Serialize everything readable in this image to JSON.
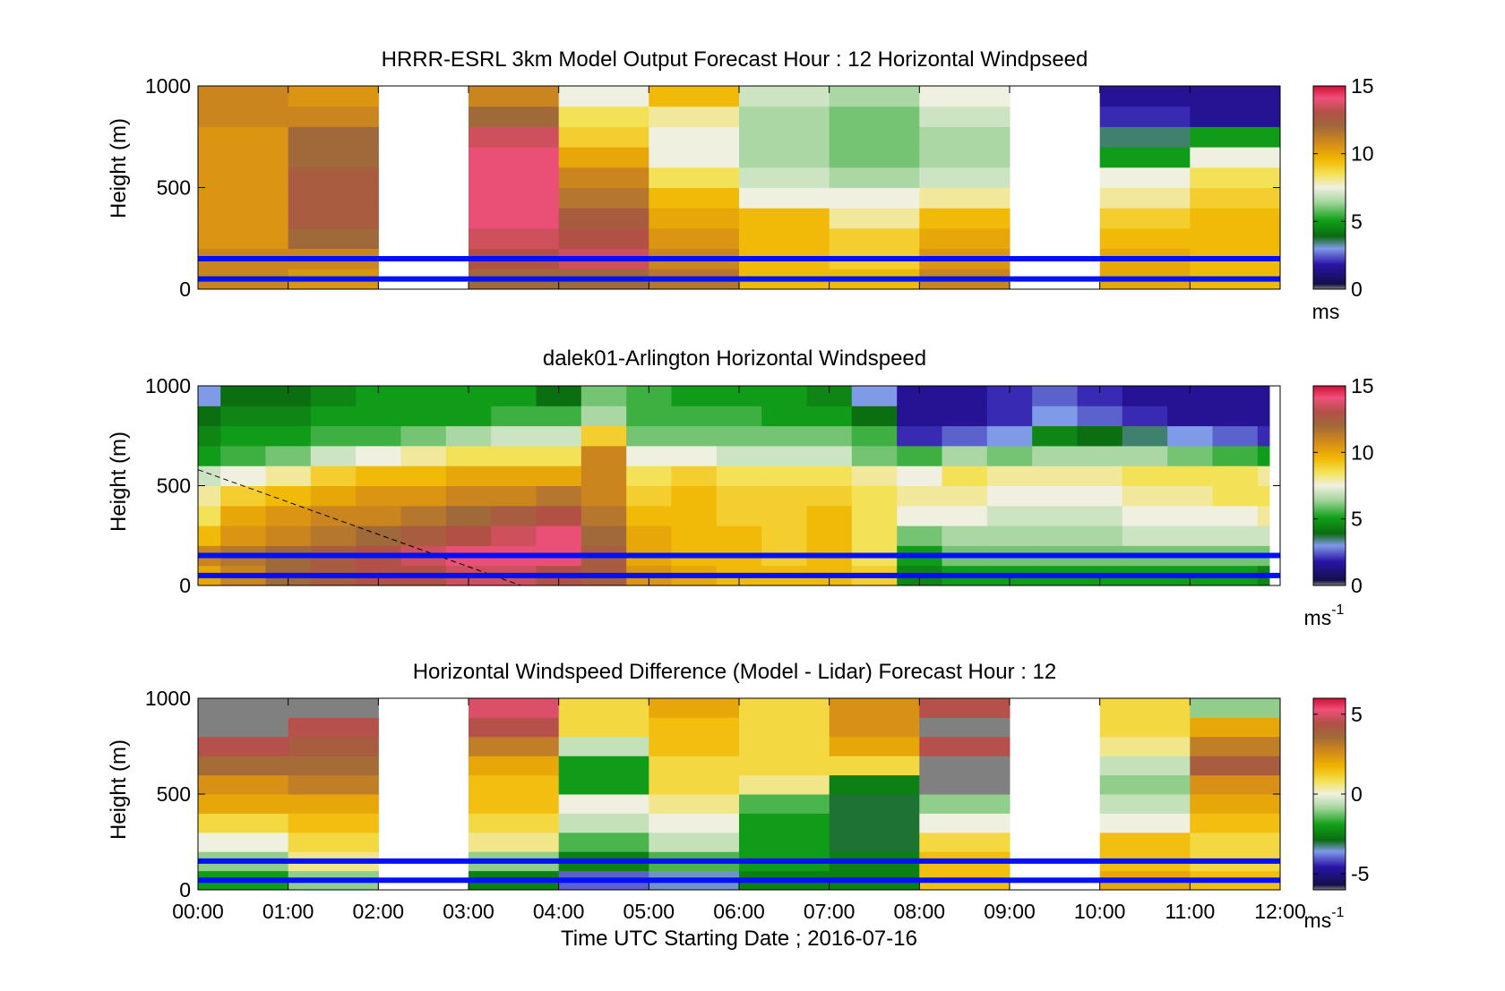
{
  "figure": {
    "xlabel": "Time UTC  Starting Date ; 2016-07-16",
    "xticks": [
      "00:00",
      "01:00",
      "02:00",
      "03:00",
      "04:00",
      "05:00",
      "06:00",
      "07:00",
      "08:00",
      "09:00",
      "10:00",
      "11:00",
      "12:00"
    ]
  },
  "colors": {
    "line_accent": "#0010ff",
    "missing": "#808080",
    "background": "#ffffff"
  },
  "chart_data": [
    {
      "type": "heatmap",
      "title": "HRRR-ESRL 3km Model Output   Forecast Hour : 12 Horizontal Windpseed",
      "ylabel": "Height (m)",
      "ylim": [
        0,
        1000
      ],
      "yticks": [
        "0",
        "500",
        "1000"
      ],
      "x_hours": [
        0,
        1,
        2,
        3,
        4,
        5,
        6,
        7,
        8,
        9,
        10,
        11,
        12
      ],
      "colorbar": {
        "min": 0,
        "max": 15,
        "ticks": [
          "0",
          "5",
          "10",
          "15"
        ],
        "unit": "ms",
        "unit_sup": ""
      },
      "reference_heights_m": [
        50,
        150
      ],
      "grid": false,
      "columns": [
        {
          "hour": 0,
          "speeds_low_to_high": [
            11,
            11,
            10.5,
            10.5,
            10.5,
            10.5,
            10.5,
            10.5,
            11,
            11
          ]
        },
        {
          "hour": 1,
          "speeds_low_to_high": [
            10.5,
            11,
            12,
            12.5,
            12.5,
            12.5,
            12,
            12,
            11,
            10.5
          ]
        },
        {
          "hour": 2,
          "speeds_low_to_high": null
        },
        {
          "hour": 3,
          "speeds_low_to_high": [
            12,
            13,
            13.5,
            14,
            14,
            14,
            14,
            13.5,
            12,
            11
          ]
        },
        {
          "hour": 4,
          "speeds_low_to_high": [
            12,
            13.5,
            13,
            12.5,
            11.5,
            11,
            10,
            9,
            8.5,
            7.5
          ]
        },
        {
          "hour": 5,
          "speeds_low_to_high": [
            11.5,
            11,
            10.5,
            10,
            9.5,
            8.5,
            7.5,
            7.5,
            8,
            9.5
          ]
        },
        {
          "hour": 6,
          "speeds_low_to_high": [
            9.5,
            9.5,
            9.5,
            9.5,
            7.5,
            7,
            6.5,
            6.5,
            6.5,
            7
          ]
        },
        {
          "hour": 7,
          "speeds_low_to_high": [
            9.5,
            9,
            9,
            8,
            7.5,
            6.5,
            6,
            6,
            6,
            6.5
          ]
        },
        {
          "hour": 8,
          "speeds_low_to_high": [
            11,
            10.5,
            10,
            9.5,
            8,
            7,
            6.5,
            6.5,
            7,
            7.5
          ]
        },
        {
          "hour": 9,
          "speeds_low_to_high": null
        },
        {
          "hour": 10,
          "speeds_low_to_high": [
            10,
            10,
            9.5,
            9,
            8,
            7.5,
            5,
            3.5,
            2,
            1.5
          ]
        },
        {
          "hour": 11,
          "speeds_low_to_high": [
            9.5,
            9.5,
            9.5,
            9.5,
            9,
            8.5,
            7.5,
            5,
            1.5,
            1.5
          ]
        }
      ]
    },
    {
      "type": "heatmap",
      "title": "dalek01-Arlington  Horizontal Windspeed",
      "ylabel": "Height (m)",
      "ylim": [
        0,
        1000
      ],
      "yticks": [
        "0",
        "500",
        "1000"
      ],
      "x_hours": [
        0,
        1,
        2,
        3,
        4,
        5,
        6,
        7,
        8,
        9,
        10,
        11,
        12
      ],
      "colorbar": {
        "min": 0,
        "max": 15,
        "ticks": [
          "0",
          "5",
          "10",
          "15"
        ],
        "unit": "ms",
        "unit_sup": "-1"
      },
      "reference_heights_m": [
        50,
        150
      ],
      "grid": false,
      "profile_hours": [
        0,
        0.5,
        1,
        1.5,
        2,
        2.5,
        3,
        3.5,
        4,
        4.5,
        5,
        5.5,
        6,
        6.5,
        7,
        7.5,
        8,
        8.5,
        9,
        9.5,
        10,
        10.5,
        11,
        11.5,
        12
      ],
      "profile_heights_m": [
        50,
        150,
        250,
        350,
        450,
        550,
        650,
        750,
        850,
        950
      ],
      "profiles_low_to_high": [
        [
          10,
          11,
          9.5,
          8.5,
          8,
          7,
          5,
          4.5,
          4,
          3
        ],
        [
          11,
          11.5,
          10.5,
          10,
          9,
          7.5,
          5.5,
          5,
          4.5,
          4
        ],
        [
          12,
          12,
          11,
          10.5,
          9.5,
          8,
          6,
          5,
          4.5,
          4
        ],
        [
          12.5,
          12.5,
          11.5,
          11,
          10,
          9,
          7,
          5.5,
          5,
          4.5
        ],
        [
          13,
          13,
          12,
          11,
          10.5,
          9.5,
          7.5,
          5.5,
          5,
          5
        ],
        [
          13,
          13.5,
          12.5,
          11.5,
          10.5,
          9.5,
          8,
          6,
          5,
          5
        ],
        [
          13.5,
          14,
          13,
          12,
          11,
          10,
          8.5,
          6.5,
          5,
          5
        ],
        [
          13.5,
          14,
          13.5,
          12.5,
          11,
          10,
          8.5,
          7,
          5.5,
          5
        ],
        [
          13,
          14,
          14,
          13,
          11.5,
          10,
          8.5,
          7,
          5.5,
          4
        ],
        [
          12.5,
          12.5,
          12,
          11.5,
          11,
          11,
          11,
          9,
          6.5,
          6
        ],
        [
          10.5,
          10,
          10,
          9.5,
          9,
          8.5,
          7.5,
          6,
          5.5,
          5.5
        ],
        [
          10,
          9.5,
          9.5,
          9.5,
          9.5,
          9,
          7.5,
          6,
          5.5,
          5
        ],
        [
          9.5,
          9.5,
          9.5,
          9,
          9,
          8.5,
          7,
          6,
          5.5,
          5
        ],
        [
          9.5,
          9,
          9,
          9,
          9,
          8.5,
          7,
          6,
          5,
          5
        ],
        [
          9.5,
          9.5,
          9.5,
          9.5,
          9,
          8.5,
          7,
          6,
          5,
          4.5
        ],
        [
          9,
          8.5,
          8.5,
          8.5,
          8.5,
          8,
          6,
          5.5,
          4,
          3
        ],
        [
          4.5,
          5,
          6,
          7.5,
          8,
          7.5,
          5.5,
          2,
          1.5,
          1.5
        ],
        [
          5,
          6,
          6.5,
          7.5,
          8,
          8.5,
          6.5,
          2.5,
          1.5,
          1.5
        ],
        [
          5,
          6,
          6.5,
          7,
          7.5,
          8,
          6,
          3,
          2,
          2
        ],
        [
          5,
          6,
          6.5,
          7,
          7.5,
          8,
          6.5,
          4.5,
          3,
          2.5
        ],
        [
          5,
          6,
          6.5,
          7,
          7.5,
          8,
          6.5,
          4,
          2.5,
          2
        ],
        [
          5,
          6,
          7,
          7.5,
          8,
          8.5,
          6.5,
          3.5,
          2,
          1.5
        ],
        [
          5,
          6,
          7,
          7.5,
          8,
          8.5,
          6,
          3,
          1.5,
          1.5
        ],
        [
          5,
          6,
          7,
          7.5,
          8.5,
          8.5,
          5.5,
          2.5,
          1.5,
          1.5
        ],
        [
          4.5,
          6,
          7,
          8,
          8.5,
          8,
          5,
          2,
          1.5,
          1.5
        ]
      ],
      "annotations": [
        "dashed diagonal line from 00:00 at 580 m to about 03:35 at 0 m"
      ]
    },
    {
      "type": "heatmap",
      "title": "Horizontal Windspeed Difference (Model - Lidar) Forecast Hour : 12",
      "ylabel": "Height (m)",
      "ylim": [
        0,
        1000
      ],
      "yticks": [
        "0",
        "500",
        "1000"
      ],
      "x_hours": [
        0,
        1,
        2,
        3,
        4,
        5,
        6,
        7,
        8,
        9,
        10,
        11,
        12
      ],
      "colorbar": {
        "min": -6,
        "max": 6,
        "ticks": [
          "-5",
          "0",
          "5"
        ],
        "unit": "ms",
        "unit_sup": "-1"
      },
      "reference_heights_m": [
        50,
        150
      ],
      "grid": false,
      "columns": [
        {
          "hour": 0,
          "diff_low_to_high": [
            -2,
            -1,
            0,
            1,
            2,
            2.5,
            3.5,
            4.5,
            null,
            null
          ]
        },
        {
          "hour": 1,
          "diff_low_to_high": [
            -1,
            0.5,
            1,
            1.5,
            2,
            3,
            3.5,
            4,
            4.5,
            null
          ]
        },
        {
          "hour": 2,
          "diff_low_to_high": null
        },
        {
          "hour": 3,
          "diff_low_to_high": [
            -2.5,
            -1,
            0.5,
            1,
            1.5,
            1.5,
            2,
            3,
            4.5,
            5
          ]
        },
        {
          "hour": 4,
          "diff_low_to_high": [
            -4,
            -2.5,
            -1.5,
            -0.5,
            0,
            -2,
            -2,
            -0.5,
            1,
            1
          ]
        },
        {
          "hour": 5,
          "diff_low_to_high": [
            -3.5,
            -1.5,
            -0.5,
            0,
            0.5,
            1,
            1,
            1.5,
            1.5,
            2
          ]
        },
        {
          "hour": 6,
          "diff_low_to_high": [
            -2.5,
            -2,
            -2,
            -2,
            -1.5,
            0.5,
            1,
            1,
            1,
            1
          ]
        },
        {
          "hour": 7,
          "diff_low_to_high": [
            -2.5,
            -2.5,
            -3,
            -3,
            -3,
            -2.5,
            1,
            2,
            2.5,
            2.5
          ]
        },
        {
          "hour": 8,
          "diff_low_to_high": [
            1.5,
            1.5,
            1,
            0,
            -1,
            null,
            null,
            4.5,
            null,
            4.5
          ]
        },
        {
          "hour": 9,
          "diff_low_to_high": null
        },
        {
          "hour": 10,
          "diff_low_to_high": [
            2,
            1.5,
            1.5,
            0,
            -0.5,
            -1,
            -0.5,
            0.5,
            1,
            1
          ]
        },
        {
          "hour": 11,
          "diff_low_to_high": [
            1.5,
            1,
            1,
            1.5,
            2,
            2.5,
            4,
            3,
            2,
            -1
          ]
        }
      ]
    }
  ]
}
